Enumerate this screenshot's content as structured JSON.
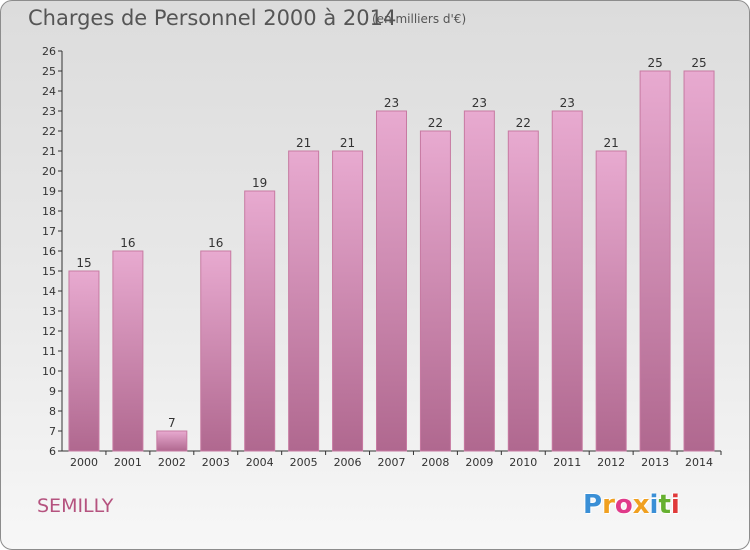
{
  "header": {
    "title": "Charges de Personnel 2000 à 2014",
    "unit": "(en milliers d'€)"
  },
  "footer": {
    "commune": "SEMILLY",
    "logo_letters": [
      "P",
      "r",
      "o",
      "x",
      "i",
      "t",
      "i"
    ],
    "logo_colors": [
      "#3a8fd6",
      "#f0a020",
      "#e03a8a",
      "#f0a020",
      "#3a8fd6",
      "#66b030",
      "#e03a3a"
    ]
  },
  "colors": {
    "bar_top": "#e8aad0",
    "bar_bottom": "#b0688f",
    "bar_edge": "#c77aa2",
    "commune_text": "#b5537f"
  },
  "chart_data": {
    "type": "bar",
    "categories": [
      "2000",
      "2001",
      "2002",
      "2003",
      "2004",
      "2005",
      "2006",
      "2007",
      "2008",
      "2009",
      "2010",
      "2011",
      "2012",
      "2013",
      "2014"
    ],
    "values": [
      15,
      16,
      7,
      16,
      19,
      21,
      21,
      23,
      22,
      23,
      22,
      23,
      21,
      25,
      25
    ],
    "title": "Charges de Personnel 2000 à 2014",
    "subtitle": "(en milliers d'€)",
    "ylim": [
      6,
      26
    ],
    "yticks": [
      6,
      7,
      8,
      9,
      10,
      11,
      12,
      13,
      14,
      15,
      16,
      17,
      18,
      19,
      20,
      21,
      22,
      23,
      24,
      25,
      26
    ],
    "grid": false
  }
}
